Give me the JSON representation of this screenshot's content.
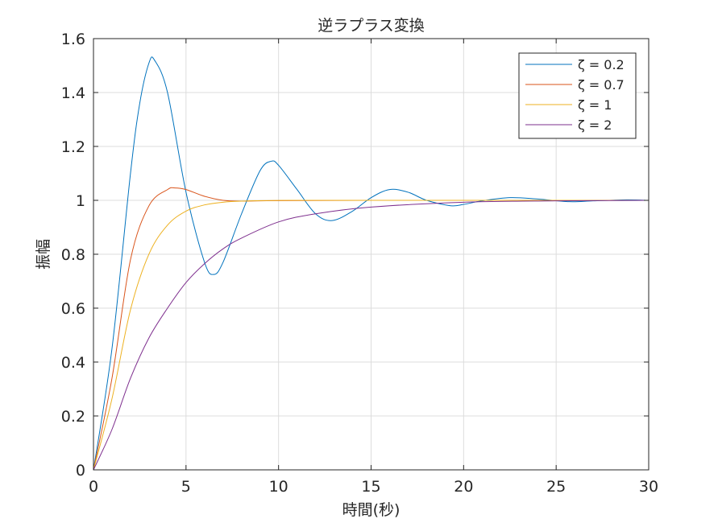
{
  "chart_data": {
    "type": "line",
    "title": "逆ラプラス変換",
    "xlabel": "時間(秒)",
    "ylabel": "振幅",
    "xlim": [
      0,
      30
    ],
    "ylim": [
      0,
      1.6
    ],
    "xticks": [
      0,
      5,
      10,
      15,
      20,
      25,
      30
    ],
    "xtick_labels": [
      "0",
      "5",
      "10",
      "15",
      "20",
      "25",
      "30"
    ],
    "yticks": [
      0,
      0.2,
      0.4,
      0.6,
      0.8,
      1,
      1.2,
      1.4,
      1.6
    ],
    "ytick_labels": [
      "0",
      "0.2",
      "0.4",
      "0.6",
      "0.8",
      "1",
      "1.2",
      "1.4",
      "1.6"
    ],
    "grid": true,
    "legend_position": "top-right",
    "series": [
      {
        "name": "ζ = 0.2",
        "color": "#0072bd",
        "x": [
          0,
          1,
          2,
          2.5,
          3,
          3.3,
          4,
          5,
          6,
          6.5,
          7,
          8,
          9,
          9.6,
          10,
          11,
          12,
          12.9,
          14,
          15,
          16,
          17,
          18,
          19.3,
          20,
          21,
          22.5,
          24,
          25.7,
          27,
          28.8,
          30
        ],
        "y": [
          0,
          0.45,
          1.1,
          1.36,
          1.51,
          1.52,
          1.4,
          1.03,
          0.77,
          0.725,
          0.77,
          0.95,
          1.11,
          1.145,
          1.13,
          1.04,
          0.95,
          0.925,
          0.96,
          1.01,
          1.04,
          1.03,
          1.0,
          0.98,
          0.985,
          0.998,
          1.01,
          1.005,
          0.995,
          0.998,
          1.002,
          1.0
        ]
      },
      {
        "name": "ζ = 0.7",
        "color": "#d95319",
        "x": [
          0,
          1,
          2,
          3,
          4,
          4.4,
          5,
          6,
          7,
          8,
          10,
          15,
          20,
          30
        ],
        "y": [
          0,
          0.34,
          0.78,
          0.98,
          1.04,
          1.046,
          1.04,
          1.015,
          1.0,
          0.997,
          0.999,
          1.0,
          1.0,
          1.0
        ]
      },
      {
        "name": "ζ = 1",
        "color": "#edb120",
        "x": [
          0,
          1,
          2,
          3,
          4,
          5,
          6,
          7,
          8,
          10,
          12,
          15,
          20,
          30
        ],
        "y": [
          0,
          0.264,
          0.594,
          0.801,
          0.908,
          0.96,
          0.983,
          0.993,
          0.997,
          0.9995,
          1.0,
          1.0,
          1.0,
          1.0
        ]
      },
      {
        "name": "ζ = 2",
        "color": "#7e2f8e",
        "x": [
          0,
          1,
          2,
          3,
          4,
          5,
          6,
          7,
          8,
          10,
          12,
          15,
          20,
          25,
          30
        ],
        "y": [
          0,
          0.15,
          0.34,
          0.49,
          0.6,
          0.695,
          0.765,
          0.82,
          0.86,
          0.92,
          0.95,
          0.975,
          0.993,
          0.998,
          1.0
        ]
      }
    ]
  }
}
